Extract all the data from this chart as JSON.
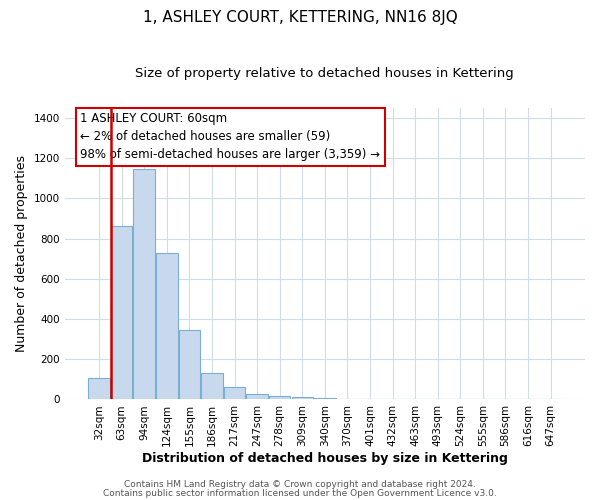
{
  "title": "1, ASHLEY COURT, KETTERING, NN16 8JQ",
  "subtitle": "Size of property relative to detached houses in Kettering",
  "xlabel": "Distribution of detached houses by size in Kettering",
  "ylabel": "Number of detached properties",
  "bar_labels": [
    "32sqm",
    "63sqm",
    "94sqm",
    "124sqm",
    "155sqm",
    "186sqm",
    "217sqm",
    "247sqm",
    "278sqm",
    "309sqm",
    "340sqm",
    "370sqm",
    "401sqm",
    "432sqm",
    "463sqm",
    "493sqm",
    "524sqm",
    "555sqm",
    "586sqm",
    "616sqm",
    "647sqm"
  ],
  "bar_values": [
    105,
    865,
    1145,
    730,
    345,
    130,
    62,
    28,
    18,
    10,
    5,
    3,
    3,
    0,
    0,
    0,
    0,
    0,
    0,
    0,
    0
  ],
  "bar_color": "#c9d9ed",
  "bar_edge_color": "#7aafd4",
  "vline_color": "#cc0000",
  "vline_pos": 0.525,
  "annotation_box_text": "1 ASHLEY COURT: 60sqm\n← 2% of detached houses are smaller (59)\n98% of semi-detached houses are larger (3,359) →",
  "ylim": [
    0,
    1450
  ],
  "yticks": [
    0,
    200,
    400,
    600,
    800,
    1000,
    1200,
    1400
  ],
  "footer_line1": "Contains HM Land Registry data © Crown copyright and database right 2024.",
  "footer_line2": "Contains public sector information licensed under the Open Government Licence v3.0.",
  "fig_background_color": "#ffffff",
  "plot_background_color": "#ffffff",
  "grid_color": "#d0dce8",
  "title_fontsize": 11,
  "subtitle_fontsize": 9.5,
  "axis_label_fontsize": 9,
  "tick_fontsize": 7.5,
  "annotation_fontsize": 8.5,
  "footer_fontsize": 6.5
}
